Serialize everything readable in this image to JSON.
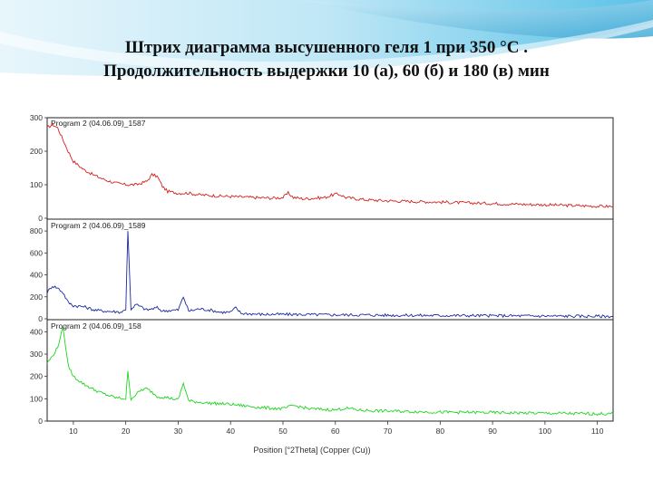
{
  "slide": {
    "title_line1": "Штрих диаграмма высушенного геля 1 при 350 °С .",
    "title_line2": "Продолжительность выдержки  10 (а),  60 (б) и 180 (в) мин",
    "bg_accent": "#5bc2e7"
  },
  "chart_data": [
    {
      "type": "line",
      "panel": "top",
      "legend": "Program 2 (04.06.09)_1587",
      "color": "#d42020",
      "xlim": [
        5,
        113
      ],
      "ylim": [
        0,
        300
      ],
      "yticks": [
        0,
        100,
        200,
        300
      ],
      "x": [
        5,
        6,
        7,
        8,
        9,
        10,
        12,
        14,
        16,
        18,
        20,
        22,
        24,
        25,
        26,
        27,
        28,
        30,
        32,
        34,
        36,
        38,
        40,
        44,
        48,
        50,
        51,
        52,
        54,
        56,
        58,
        60,
        61,
        62,
        64,
        66,
        70,
        75,
        80,
        85,
        90,
        95,
        100,
        105,
        110,
        113
      ],
      "values": [
        270,
        280,
        270,
        235,
        200,
        170,
        145,
        128,
        115,
        105,
        100,
        100,
        110,
        130,
        125,
        95,
        80,
        75,
        75,
        70,
        68,
        66,
        65,
        62,
        60,
        62,
        75,
        62,
        58,
        60,
        62,
        72,
        70,
        62,
        58,
        55,
        52,
        50,
        48,
        46,
        44,
        42,
        40,
        38,
        36,
        35
      ]
    },
    {
      "type": "line",
      "panel": "middle",
      "legend": "Program 2 (04.06.09)_1589",
      "color": "#1a2a9a",
      "xlim": [
        5,
        113
      ],
      "ylim": [
        0,
        900
      ],
      "yticks": [
        0,
        200,
        400,
        600,
        800
      ],
      "x": [
        5,
        6,
        7,
        8,
        9,
        10,
        12,
        14,
        16,
        18,
        19,
        20,
        20.4,
        21,
        22,
        24,
        26,
        27,
        28,
        30,
        31,
        32,
        34,
        36,
        38,
        40,
        41,
        42,
        44,
        46,
        50,
        55,
        60,
        65,
        70,
        80,
        90,
        100,
        113
      ],
      "values": [
        240,
        300,
        280,
        240,
        150,
        120,
        110,
        80,
        70,
        65,
        60,
        80,
        800,
        90,
        130,
        80,
        100,
        70,
        75,
        80,
        200,
        70,
        90,
        80,
        60,
        60,
        100,
        50,
        45,
        40,
        40,
        38,
        36,
        35,
        32,
        30,
        28,
        25,
        22
      ]
    },
    {
      "type": "line",
      "panel": "bottom",
      "legend": "Program 2 (04.06.09)_158",
      "color": "#1fd41f",
      "xlim": [
        5,
        113
      ],
      "ylim": [
        0,
        450
      ],
      "yticks": [
        0,
        100,
        200,
        300,
        400
      ],
      "x": [
        5,
        6,
        7,
        8,
        9,
        10,
        12,
        14,
        16,
        18,
        20,
        20.4,
        21,
        22,
        23,
        24,
        25,
        26,
        28,
        30,
        31,
        32,
        34,
        36,
        38,
        40,
        42,
        44,
        46,
        50,
        52,
        55,
        60,
        62,
        65,
        70,
        80,
        90,
        100,
        113
      ],
      "values": [
        260,
        290,
        330,
        420,
        250,
        200,
        165,
        140,
        120,
        105,
        100,
        220,
        100,
        120,
        140,
        145,
        130,
        110,
        105,
        95,
        170,
        90,
        85,
        80,
        78,
        75,
        70,
        65,
        60,
        55,
        70,
        55,
        50,
        58,
        48,
        45,
        40,
        38,
        35,
        32
      ]
    }
  ],
  "axis": {
    "xticks": [
      10,
      20,
      30,
      40,
      50,
      60,
      70,
      80,
      90,
      100,
      110
    ],
    "xtick_labels": [
      "10",
      "20",
      "30",
      "40",
      "50",
      "60",
      "70",
      "80",
      "90",
      "100",
      "110"
    ],
    "xlabel": "Position [°2Theta] (Copper (Cu))"
  }
}
